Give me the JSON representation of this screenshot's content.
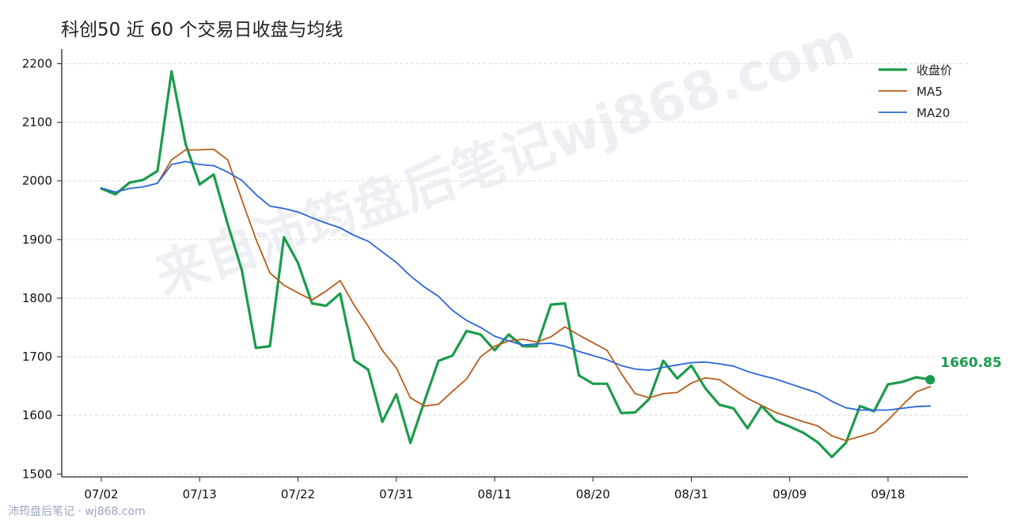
{
  "chart_data": {
    "type": "line",
    "title": "科创50 近 60 个交易日收盘与均线",
    "xlabel": "",
    "ylabel": "",
    "ylim": [
      1495,
      2225
    ],
    "yticks": [
      1500,
      1600,
      1700,
      1800,
      1900,
      2000,
      2100,
      2200
    ],
    "xticks": [
      {
        "index": 0,
        "label": "07/02"
      },
      {
        "index": 7,
        "label": "07/13"
      },
      {
        "index": 14,
        "label": "07/22"
      },
      {
        "index": 21,
        "label": "07/31"
      },
      {
        "index": 28,
        "label": "08/11"
      },
      {
        "index": 35,
        "label": "08/20"
      },
      {
        "index": 42,
        "label": "08/31"
      },
      {
        "index": 49,
        "label": "09/09"
      },
      {
        "index": 56,
        "label": "09/18"
      }
    ],
    "grid": "horizontal-dashed",
    "legend_position": "top-right",
    "series": [
      {
        "name": "收盘价",
        "color": "#1a9c4a",
        "values": [
          1987,
          1977,
          1997,
          2002,
          2017,
          2187,
          2063,
          1994,
          2011,
          1926,
          1848,
          1715,
          1718,
          1904,
          1860,
          1791,
          1787,
          1808,
          1694,
          1678,
          1589,
          1636,
          1553,
          1624,
          1693,
          1702,
          1744,
          1738,
          1711,
          1738,
          1718,
          1718,
          1789,
          1791,
          1668,
          1654,
          1654,
          1604,
          1605,
          1628,
          1693,
          1663,
          1685,
          1646,
          1618,
          1612,
          1578,
          1616,
          1591,
          1581,
          1570,
          1554,
          1529,
          1553,
          1616,
          1607,
          1653,
          1657,
          1665,
          1661
        ]
      },
      {
        "name": "MA5",
        "color": "#b85c1a",
        "values": [
          null,
          null,
          null,
          null,
          1996,
          2036,
          2053,
          2053,
          2054,
          2036,
          1968,
          1901,
          1843,
          1822,
          1809,
          1797,
          1812,
          1830,
          1788,
          1752,
          1711,
          1681,
          1630,
          1616,
          1619,
          1641,
          1662,
          1700,
          1718,
          1727,
          1730,
          1725,
          1734,
          1751,
          1737,
          1724,
          1711,
          1672,
          1637,
          1630,
          1637,
          1639,
          1655,
          1664,
          1661,
          1645,
          1629,
          1617,
          1605,
          1597,
          1589,
          1582,
          1565,
          1557,
          1564,
          1571,
          1592,
          1617,
          1640,
          1649
        ]
      },
      {
        "name": "MA20",
        "color": "#2a66d9",
        "values": [
          1988,
          1981,
          1987,
          1990,
          1996,
          2028,
          2033,
          2028,
          2026,
          2015,
          2001,
          1977,
          1957,
          1953,
          1947,
          1937,
          1928,
          1920,
          1907,
          1897,
          1879,
          1861,
          1838,
          1819,
          1803,
          1779,
          1762,
          1750,
          1735,
          1727,
          1720,
          1722,
          1723,
          1718,
          1709,
          1702,
          1695,
          1685,
          1679,
          1677,
          1682,
          1686,
          1690,
          1691,
          1688,
          1684,
          1675,
          1668,
          1662,
          1654,
          1646,
          1638,
          1624,
          1613,
          1609,
          1609,
          1609,
          1612,
          1615,
          1616
        ]
      }
    ],
    "last_value": {
      "label": "1660.85",
      "value": 1660.85,
      "color": "#1a9c4a"
    }
  },
  "watermark": "来自沛筠盘后笔记wj868.com",
  "footer": "沛筠盘后笔记 · wj868.com"
}
